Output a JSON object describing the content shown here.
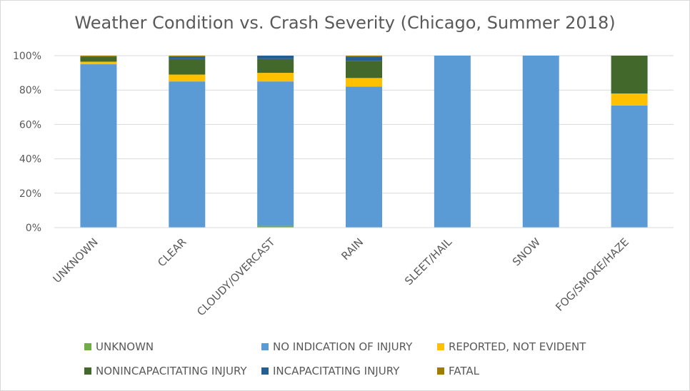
{
  "chart_data": {
    "type": "bar",
    "stacked": "percent",
    "title": "Weather Condition vs. Crash Severity (Chicago, Summer 2018)",
    "xlabel": "",
    "ylabel": "",
    "ylim": [
      0,
      100
    ],
    "y_ticks": [
      "0%",
      "20%",
      "40%",
      "60%",
      "80%",
      "100%"
    ],
    "grid": true,
    "legend_position": "bottom",
    "categories": [
      "UNKNOWN",
      "CLEAR",
      "CLOUDY/OVERCAST",
      "RAIN",
      "SLEET/HAIL",
      "SNOW",
      "FOG/SMOKE/HAZE"
    ],
    "series": [
      {
        "name": "UNKNOWN",
        "color": "#70ad47",
        "values": [
          0,
          0,
          1,
          0,
          0,
          0,
          0
        ]
      },
      {
        "name": "NO INDICATION OF INJURY",
        "color": "#5b9bd5",
        "values": [
          95,
          85,
          84,
          82,
          100,
          100,
          71
        ]
      },
      {
        "name": "REPORTED, NOT EVIDENT",
        "color": "#ffc000",
        "values": [
          1.5,
          4,
          5,
          5,
          0,
          0,
          7
        ]
      },
      {
        "name": "NONINCAPACITATING INJURY",
        "color": "#43682b",
        "values": [
          3,
          9,
          8,
          10,
          0,
          0,
          22
        ]
      },
      {
        "name": "INCAPACITATING INJURY",
        "color": "#255e91",
        "values": [
          0,
          1.5,
          2,
          2.5,
          0,
          0,
          0
        ]
      },
      {
        "name": "FATAL",
        "color": "#9e7c00",
        "values": [
          0.5,
          0.5,
          0,
          0.5,
          0,
          0,
          0
        ]
      }
    ]
  }
}
